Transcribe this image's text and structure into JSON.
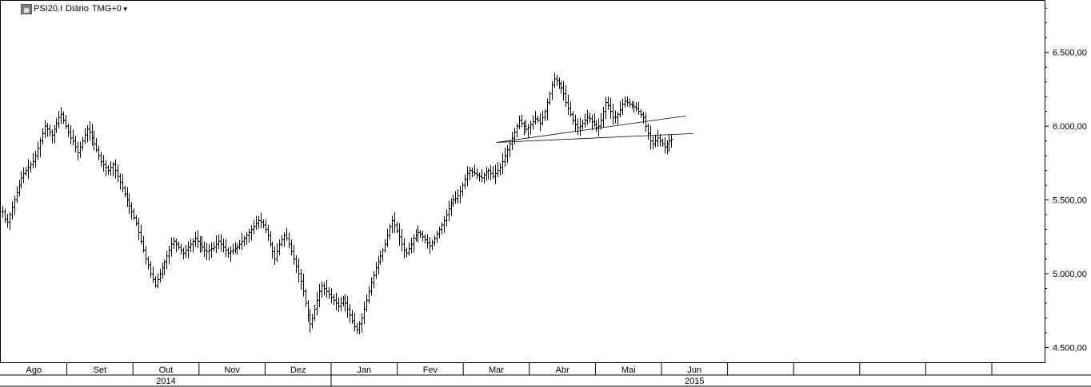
{
  "header": {
    "symbol": "PSI20.I",
    "period": "Diário",
    "timezone": "TMG+0",
    "icon": "chart-settings-icon"
  },
  "chart_data": {
    "type": "ohlc-bar",
    "title": "PSI20.I Diário TMG+0",
    "ylim": [
      4400,
      6850
    ],
    "y_ticks": [
      {
        "value": 4500,
        "label": "4.500,00"
      },
      {
        "value": 5000,
        "label": "5.000,00"
      },
      {
        "value": 5500,
        "label": "5.500,00"
      },
      {
        "value": 6000,
        "label": "6.000,00"
      },
      {
        "value": 6500,
        "label": "6.500,00"
      }
    ],
    "months": [
      "Ago",
      "Set",
      "Out",
      "Nov",
      "Dez",
      "Jan",
      "Fev",
      "Mar",
      "Abr",
      "Mai",
      "Jun",
      "",
      "",
      "",
      "",
      ""
    ],
    "years": [
      {
        "label": "2014",
        "from_month": 0,
        "to_month": 4
      },
      {
        "label": "2015",
        "from_month": 5,
        "to_month": 15
      }
    ],
    "closes": [
      5420,
      5370,
      5350,
      5400,
      5450,
      5500,
      5550,
      5600,
      5650,
      5680,
      5700,
      5720,
      5740,
      5760,
      5800,
      5850,
      5900,
      5950,
      6000,
      5980,
      5960,
      5940,
      5980,
      6020,
      6060,
      6080,
      6040,
      6000,
      5960,
      5920,
      5900,
      5860,
      5820,
      5860,
      5900,
      5940,
      5980,
      5960,
      5920,
      5880,
      5840,
      5800,
      5760,
      5740,
      5720,
      5700,
      5720,
      5740,
      5700,
      5660,
      5620,
      5580,
      5540,
      5500,
      5460,
      5420,
      5380,
      5340,
      5280,
      5220,
      5160,
      5100,
      5060,
      5000,
      4960,
      4920,
      4960,
      5000,
      5040,
      5080,
      5120,
      5160,
      5200,
      5220,
      5200,
      5180,
      5160,
      5140,
      5160,
      5180,
      5200,
      5220,
      5240,
      5220,
      5200,
      5180,
      5160,
      5150,
      5160,
      5170,
      5180,
      5200,
      5220,
      5200,
      5180,
      5160,
      5140,
      5150,
      5160,
      5170,
      5180,
      5200,
      5220,
      5240,
      5260,
      5280,
      5300,
      5320,
      5340,
      5360,
      5350,
      5330,
      5300,
      5260,
      5200,
      5150,
      5100,
      5150,
      5200,
      5230,
      5260,
      5240,
      5200,
      5150,
      5100,
      5050,
      5000,
      4950,
      4880,
      4800,
      4720,
      4660,
      4700,
      4760,
      4820,
      4880,
      4920,
      4900,
      4880,
      4860,
      4840,
      4820,
      4800,
      4780,
      4800,
      4830,
      4800,
      4760,
      4720,
      4680,
      4640,
      4620,
      4660,
      4700,
      4760,
      4820,
      4880,
      4940,
      4990,
      5040,
      5080,
      5120,
      5160,
      5200,
      5260,
      5320,
      5360,
      5330,
      5290,
      5250,
      5200,
      5160,
      5140,
      5170,
      5200,
      5240,
      5260,
      5280,
      5270,
      5250,
      5230,
      5210,
      5190,
      5210,
      5240,
      5270,
      5300,
      5330,
      5360,
      5400,
      5440,
      5480,
      5500,
      5510,
      5530,
      5560,
      5600,
      5640,
      5680,
      5700,
      5690,
      5680,
      5670,
      5660,
      5650,
      5670,
      5690,
      5700,
      5680,
      5660,
      5680,
      5700,
      5720,
      5760,
      5800,
      5840,
      5880,
      5920,
      5960,
      6000,
      6040,
      6020,
      6000,
      5980,
      5990,
      6010,
      6030,
      6050,
      6040,
      6020,
      6060,
      6100,
      6160,
      6220,
      6280,
      6320,
      6310,
      6290,
      6260,
      6220,
      6160,
      6120,
      6080,
      6040,
      6010,
      5990,
      6000,
      6020,
      6040,
      6060,
      6050,
      6030,
      6010,
      5990,
      6000,
      6040,
      6100,
      6160,
      6140,
      6100,
      6060,
      6060,
      6080,
      6110,
      6150,
      6170,
      6160,
      6150,
      6140,
      6130,
      6120,
      6100,
      6080,
      6060,
      6000,
      5950,
      5900,
      5880,
      5900,
      5920,
      5900,
      5880,
      5860,
      5880,
      5900,
      5910
    ]
  },
  "trendlines": [
    {
      "from": {
        "month": 7.5,
        "value": 5890
      },
      "to": {
        "month": 10.37,
        "value": 6070
      }
    },
    {
      "from": {
        "month": 7.5,
        "value": 5890
      },
      "to": {
        "month": 10.48,
        "value": 5950
      }
    }
  ]
}
